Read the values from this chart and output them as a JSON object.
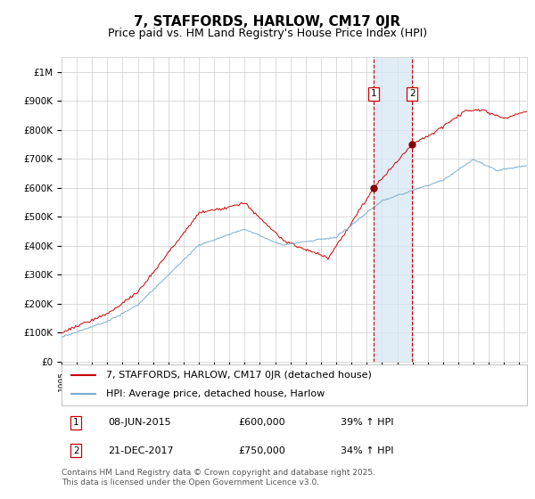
{
  "title": "7, STAFFORDS, HARLOW, CM17 0JR",
  "subtitle": "Price paid vs. HM Land Registry's House Price Index (HPI)",
  "ylabel_ticks": [
    "£0",
    "£100K",
    "£200K",
    "£300K",
    "£400K",
    "£500K",
    "£600K",
    "£700K",
    "£800K",
    "£900K",
    "£1M"
  ],
  "ytick_values": [
    0,
    100000,
    200000,
    300000,
    400000,
    500000,
    600000,
    700000,
    800000,
    900000,
    1000000
  ],
  "ylim": [
    0,
    1050000
  ],
  "xlim_start": 1995.0,
  "xlim_end": 2025.5,
  "sale1_x": 2015.44,
  "sale1_y": 600000,
  "sale2_x": 2017.97,
  "sale2_y": 750000,
  "sale1_label": "1",
  "sale2_label": "2",
  "sale1_date": "08-JUN-2015",
  "sale1_price": "£600,000",
  "sale1_hpi": "39% ↑ HPI",
  "sale2_date": "21-DEC-2017",
  "sale2_price": "£750,000",
  "sale2_hpi": "34% ↑ HPI",
  "line1_color": "#cc0000",
  "line2_color": "#7aacce",
  "sale_dot_color": "#880000",
  "vline_color": "#cc0000",
  "shade_color": "#d8e8f4",
  "legend1_label": "7, STAFFORDS, HARLOW, CM17 0JR (detached house)",
  "legend2_label": "HPI: Average price, detached house, Harlow",
  "footer": "Contains HM Land Registry data © Crown copyright and database right 2025.\nThis data is licensed under the Open Government Licence v3.0.",
  "background_color": "#ffffff",
  "grid_color": "#cccccc",
  "title_fontsize": 11,
  "subtitle_fontsize": 9,
  "tick_fontsize": 7.5,
  "legend_fontsize": 8,
  "annotation_fontsize": 8,
  "footer_fontsize": 6.5
}
